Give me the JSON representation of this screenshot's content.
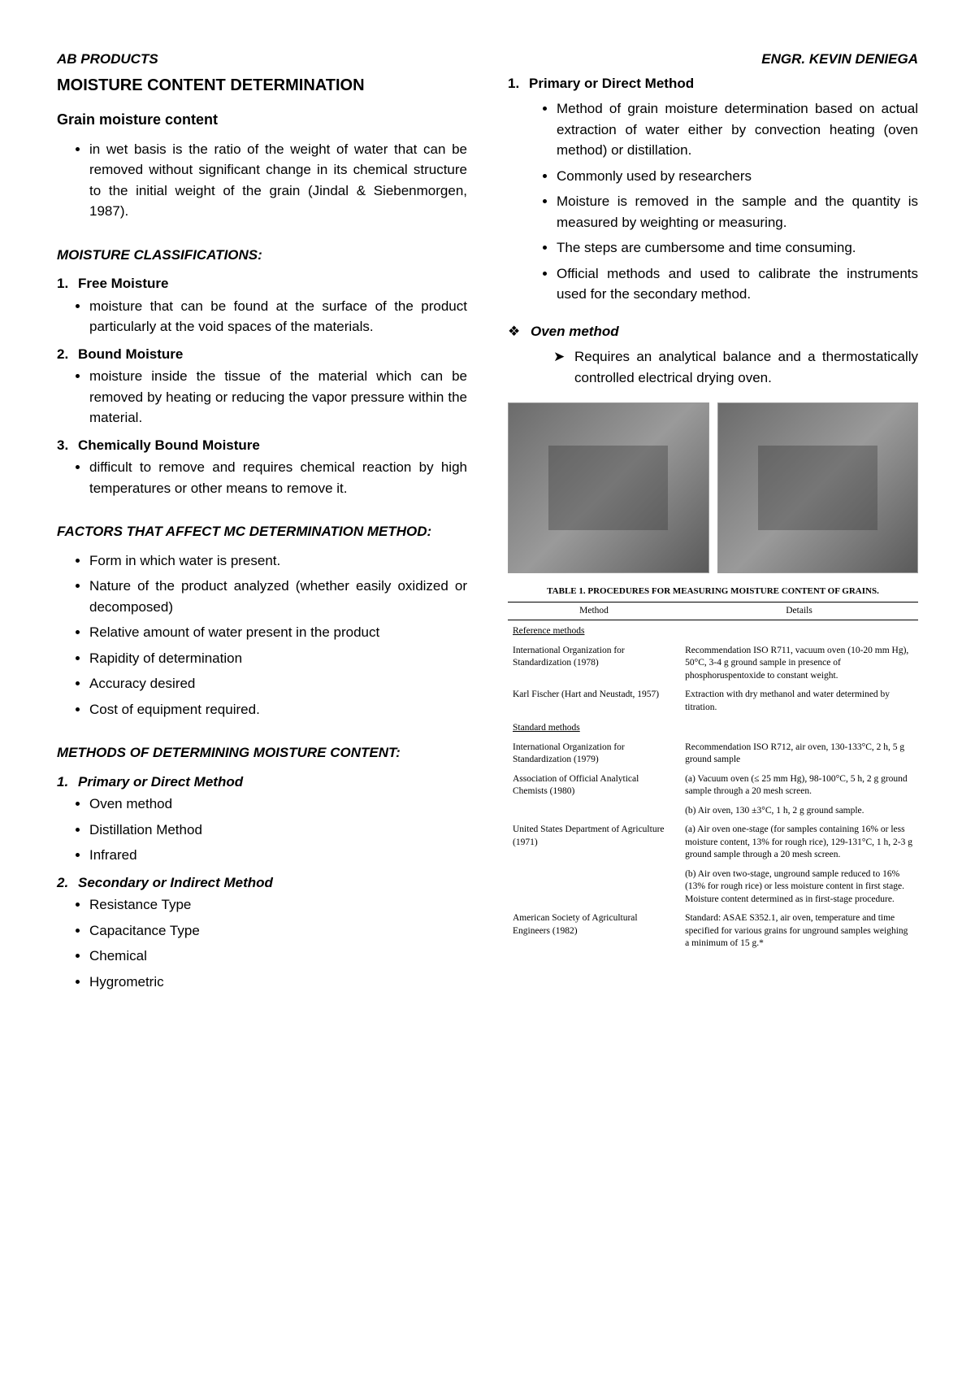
{
  "header": {
    "left": "AB PRODUCTS",
    "right": "ENGR. KEVIN DENIEGA"
  },
  "left": {
    "title": "MOISTURE CONTENT DETERMINATION",
    "gm_head": "Grain moisture content",
    "gm_bullet": "in wet basis is the ratio of the weight of water that can be removed without significant change in its chemical structure to the initial weight of the grain (Jindal & Siebenmorgen, 1987).",
    "classif_head": "MOISTURE CLASSIFICATIONS:",
    "classif": [
      {
        "title": "Free Moisture",
        "desc": "moisture that can be found at the surface of the product particularly at the void spaces of the materials."
      },
      {
        "title": "Bound Moisture",
        "desc": "moisture inside the tissue of the material which can be removed by heating or reducing the vapor pressure within the material."
      },
      {
        "title": "Chemically Bound Moisture",
        "desc": "difficult to remove and requires chemical reaction by high temperatures or other means to remove it."
      }
    ],
    "factors_head": "FACTORS THAT AFFECT MC DETERMINATION METHOD:",
    "factors": [
      "Form in which water is present.",
      "Nature of the product analyzed (whether easily oxidized or decomposed)",
      "Relative amount of water present in the product",
      "Rapidity of determination",
      "Accuracy desired",
      "Cost of equipment required."
    ],
    "methods_head": "METHODS OF DETERMINING MOISTURE CONTENT:",
    "m1": {
      "title": "Primary or Direct Method",
      "items": [
        "Oven method",
        "Distillation Method",
        "Infrared"
      ]
    },
    "m2": {
      "title": "Secondary or Indirect Method",
      "items": [
        "Resistance Type",
        "Capacitance Type",
        "Chemical",
        "Hygrometric"
      ]
    }
  },
  "right": {
    "pm_head": "Primary or Direct Method",
    "pm_num": "1.",
    "pm_points": [
      "Method of grain moisture determination based on actual extraction of water either by convection heating (oven method) or distillation.",
      "Commonly used by researchers",
      "Moisture is removed in the sample and the quantity is measured by weighting or measuring.",
      "The steps are cumbersome and time consuming.",
      "Official methods and used to calibrate the instruments used for the secondary method."
    ],
    "oven_head": "Oven method",
    "oven_point": "Requires an analytical balance and a thermostatically controlled electrical drying oven.",
    "table_caption": "TABLE 1. PROCEDURES FOR MEASURING MOISTURE CONTENT OF GRAINS.",
    "table": {
      "h1": "Method",
      "h2": "Details",
      "g1": "Reference methods",
      "r1m": "International Organization for Standardization (1978)",
      "r1d": "Recommendation ISO R711, vacuum oven (10-20 mm Hg), 50°C, 3-4 g ground sample in presence of phosphoruspentoxide to constant weight.",
      "r2m": "Karl Fischer (Hart and Neustadt, 1957)",
      "r2d": "Extraction with dry methanol and water determined by titration.",
      "g2": "Standard methods",
      "r3m": "International Organization for Standardization (1979)",
      "r3d": "Recommendation ISO R712, air oven, 130-133°C, 2 h, 5 g ground sample",
      "r4m": "Association of Official Analytical Chemists (1980)",
      "r4d": "(a) Vacuum oven (≤ 25 mm Hg), 98-100°C, 5 h, 2 g ground sample through a 20 mesh screen.",
      "r4d2": "(b) Air oven, 130 ±3°C, 1 h, 2 g ground sample.",
      "r5m": "United States Department of Agriculture (1971)",
      "r5d": "(a) Air oven one-stage (for samples containing 16% or less moisture content, 13% for rough rice), 129-131°C, 1 h, 2-3 g ground sample through a 20 mesh screen.",
      "r5d2": "(b) Air oven two-stage, unground sample reduced to 16% (13% for rough rice) or less moisture content in first stage. Moisture content determined as in first-stage procedure.",
      "r6m": "American Society of Agricultural Engineers (1982)",
      "r6d": "Standard: ASAE S352.1, air oven, temperature and time specified for various grains for unground samples weighing a minimum of 15 g.*"
    }
  }
}
